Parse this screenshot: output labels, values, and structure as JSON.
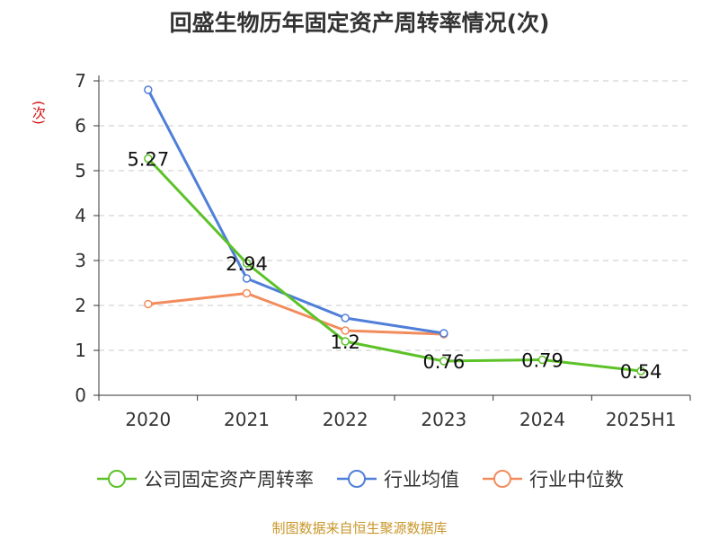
{
  "title": "回盛生物历年固定资产周转率情况(次)",
  "source": "制图数据来自恒生聚源数据库",
  "chart_data": {
    "type": "line",
    "title": "回盛生物历年固定资产周转率情况(次)",
    "ylabel": "(次)",
    "xlabel": "",
    "categories": [
      "2020",
      "2021",
      "2022",
      "2023",
      "2024",
      "2025H1"
    ],
    "ylim": [
      0,
      7
    ],
    "yticks": [
      0,
      1,
      2,
      3,
      4,
      5,
      6,
      7
    ],
    "grid": true,
    "legend_position": "bottom",
    "series": [
      {
        "name": "公司固定资产周转率",
        "color": "#5cc228",
        "values": [
          5.27,
          2.94,
          1.2,
          0.76,
          0.79,
          0.54
        ],
        "labels": [
          "5.27",
          "2.94",
          "1.2",
          "0.76",
          "0.79",
          "0.54"
        ]
      },
      {
        "name": "行业均值",
        "color": "#4f7fd8",
        "values": [
          6.8,
          2.6,
          1.72,
          1.38,
          null,
          null
        ]
      },
      {
        "name": "行业中位数",
        "color": "#f28c5c",
        "values": [
          2.03,
          2.27,
          1.44,
          1.36,
          null,
          null
        ]
      }
    ]
  }
}
